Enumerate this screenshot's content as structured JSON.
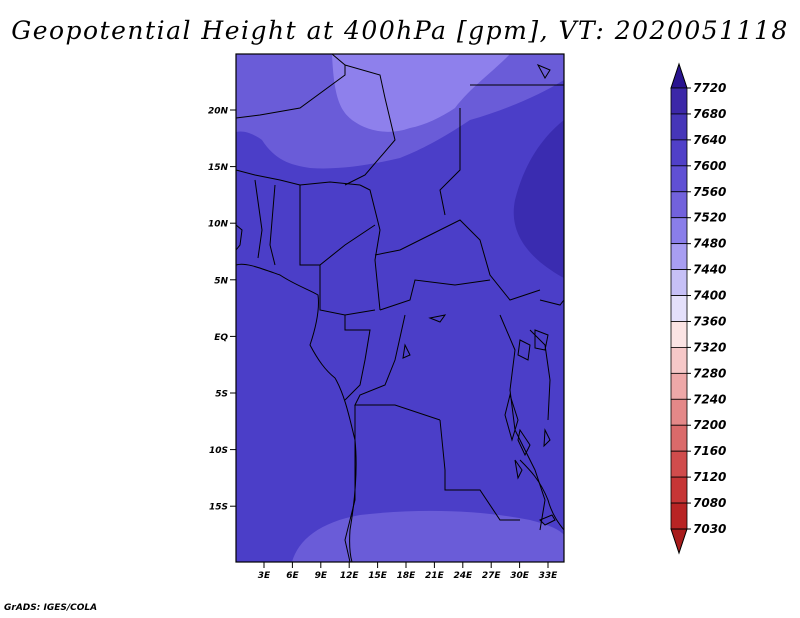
{
  "title": "Geopotential Height at 400hPa [gpm], VT: 2020051118",
  "credit": "GrADS: IGES/COLA",
  "map": {
    "lon_ticks": [
      "3E",
      "6E",
      "9E",
      "12E",
      "15E",
      "18E",
      "21E",
      "24E",
      "27E",
      "30E",
      "33E"
    ],
    "lat_ticks": [
      "20N",
      "15N",
      "10N",
      "5N",
      "EQ",
      "5S",
      "10S",
      "15S"
    ]
  },
  "colorbar": {
    "levels": [
      "7720",
      "7680",
      "7640",
      "7600",
      "7560",
      "7520",
      "7480",
      "7440",
      "7400",
      "7360",
      "7320",
      "7280",
      "7240",
      "7200",
      "7160",
      "7120",
      "7080",
      "7030"
    ],
    "colors": {
      "top": "#2a1490",
      "7720": "#3c28a8",
      "7680": "#4636b8",
      "7640": "#5040c8",
      "7600": "#6050d4",
      "7560": "#7262dc",
      "7520": "#8a7eea",
      "7480": "#a89ef2",
      "7440": "#c6c0f6",
      "7400": "#e4e0fa",
      "7360": "#fbe4e4",
      "7320": "#f6c8c8",
      "7280": "#eea8a8",
      "7240": "#e48888",
      "7200": "#da6a6a",
      "7160": "#d04c4c",
      "7120": "#c63636",
      "7080": "#b82424",
      "bottom": "#a81c1c"
    }
  },
  "fill_colors": {
    "base": "#4b3ec8",
    "upper_band": "#6a5cd8",
    "north_high": "#8e80ec",
    "east_low": "#3a2cb0",
    "south_band": "#6a5cd8"
  }
}
